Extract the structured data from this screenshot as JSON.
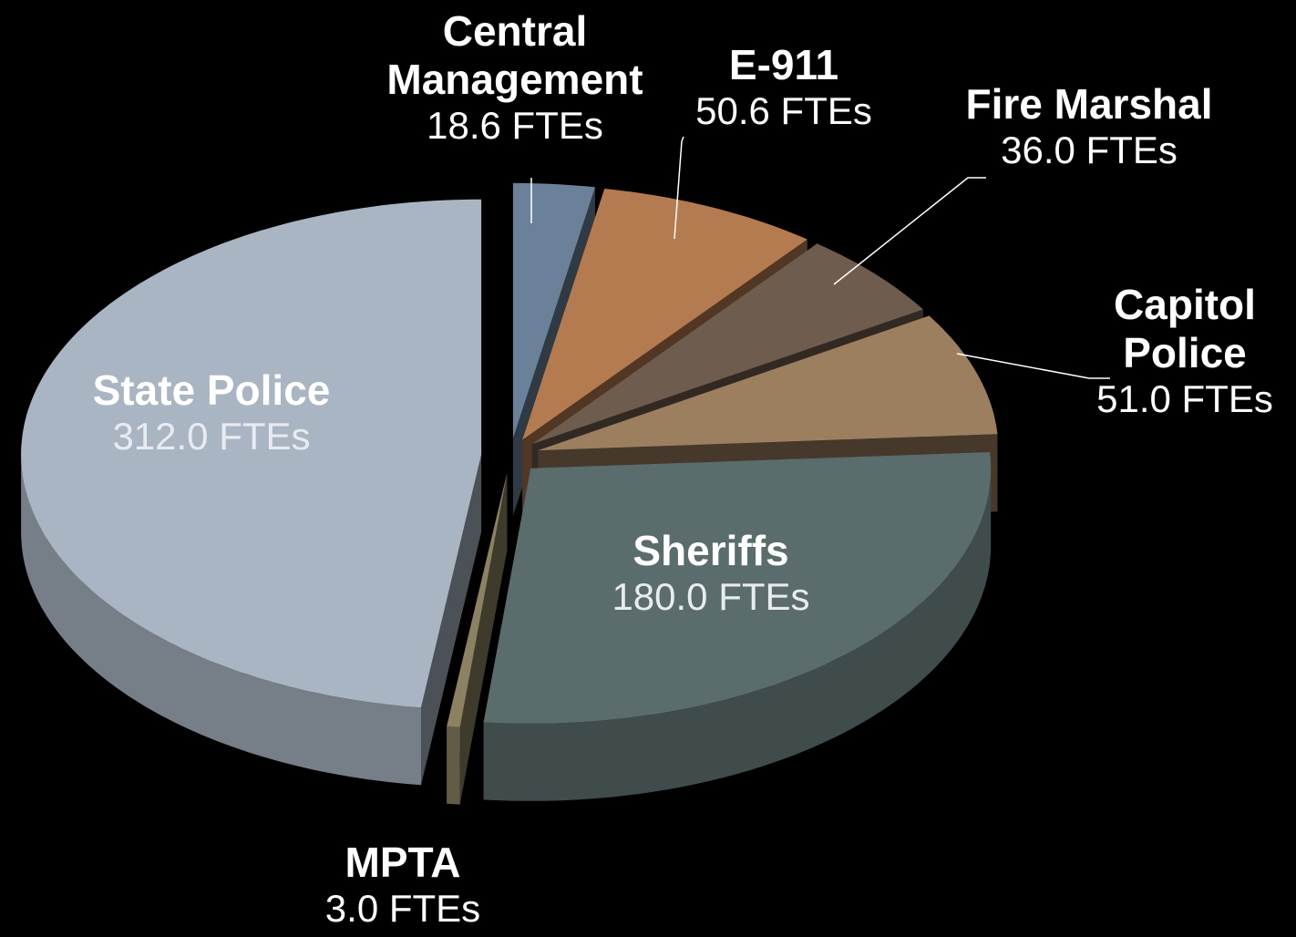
{
  "chart_data": {
    "type": "pie",
    "categories": [
      "Central Management",
      "E-911",
      "Fire Marshal",
      "Capitol Police",
      "Sheriffs",
      "MPTA",
      "State Police"
    ],
    "values": [
      18.6,
      50.6,
      36.0,
      51.0,
      180.0,
      3.0,
      312.0
    ],
    "value_labels": [
      "18.6 FTEs",
      "50.6 FTEs",
      "36.0 FTEs",
      "51.0 FTEs",
      "180.0 FTEs",
      "3.0 FTEs",
      "312.0 FTEs"
    ],
    "colors": [
      "#6b8199",
      "#b37b4f",
      "#6e5c4e",
      "#9c7f5f",
      "#5b6c6c",
      "#8c8262",
      "#a9b5c2"
    ]
  }
}
